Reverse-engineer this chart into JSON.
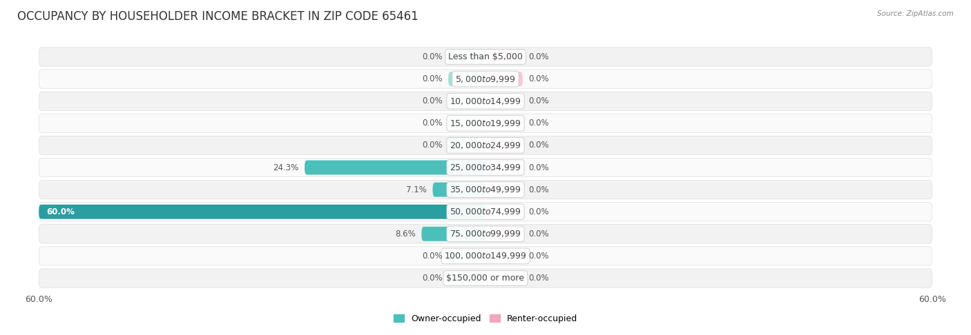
{
  "title": "OCCUPANCY BY HOUSEHOLDER INCOME BRACKET IN ZIP CODE 65461",
  "source": "Source: ZipAtlas.com",
  "categories": [
    "Less than $5,000",
    "$5,000 to $9,999",
    "$10,000 to $14,999",
    "$15,000 to $19,999",
    "$20,000 to $24,999",
    "$25,000 to $34,999",
    "$35,000 to $49,999",
    "$50,000 to $74,999",
    "$75,000 to $99,999",
    "$100,000 to $149,999",
    "$150,000 or more"
  ],
  "owner_occupied": [
    0.0,
    0.0,
    0.0,
    0.0,
    0.0,
    24.3,
    7.1,
    60.0,
    8.6,
    0.0,
    0.0
  ],
  "renter_occupied": [
    0.0,
    0.0,
    0.0,
    0.0,
    0.0,
    0.0,
    0.0,
    0.0,
    0.0,
    0.0,
    0.0
  ],
  "owner_color": "#4CBFBB",
  "renter_color": "#F2A8BC",
  "owner_color_dark": "#2A9EA0",
  "placeholder_owner": "#A8DDD9",
  "placeholder_renter": "#F7C8D4",
  "row_color_light": "#F2F2F2",
  "row_color_white": "#FAFAFA",
  "axis_limit": 60.0,
  "min_bar": 5.0,
  "title_fontsize": 12,
  "category_fontsize": 9,
  "value_fontsize": 8.5,
  "bottom_tick_label": "60.0%"
}
